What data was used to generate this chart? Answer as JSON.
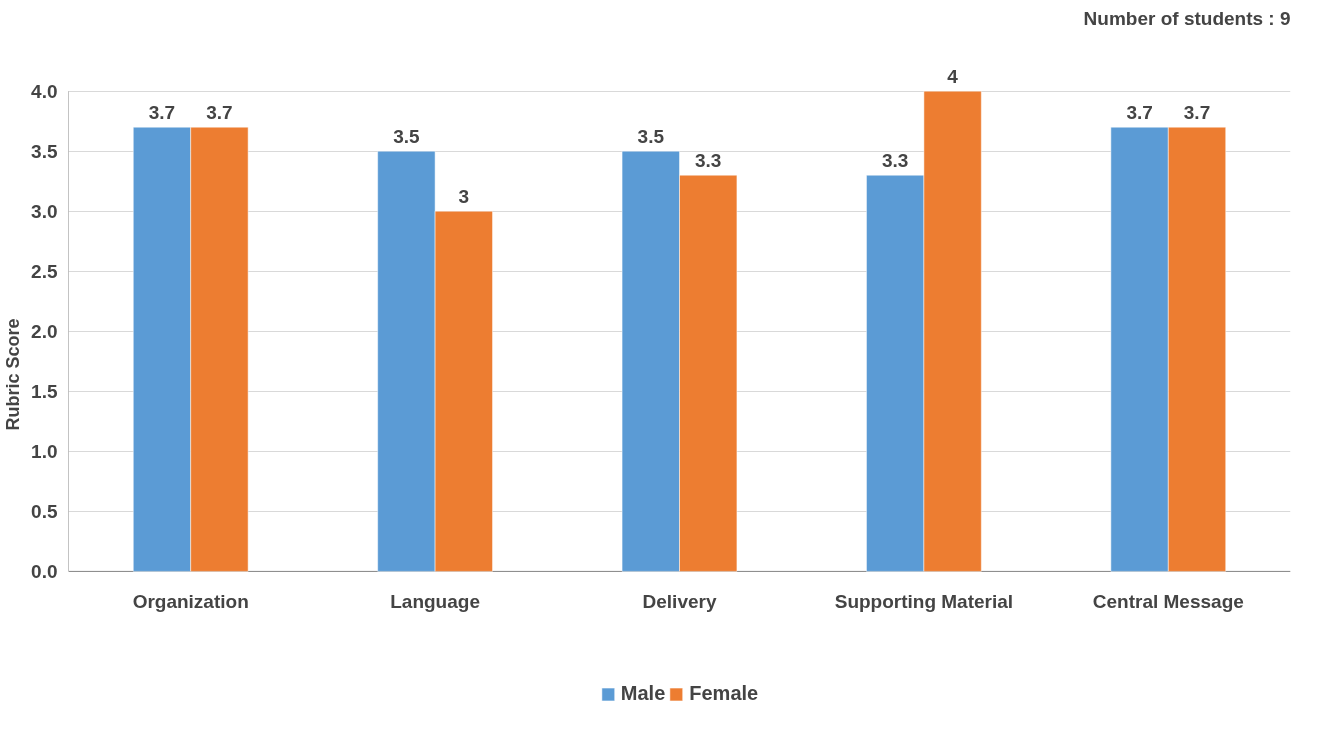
{
  "chart_data": {
    "type": "bar",
    "ylabel": "Rubric Score",
    "categories": [
      "Organization",
      "Language",
      "Delivery",
      "Supporting Material",
      "Central Message"
    ],
    "series": [
      {
        "name": "Male",
        "color": "#5b9bd5",
        "values": [
          3.7,
          3.5,
          3.5,
          3.3,
          3.7
        ],
        "value_labels": [
          "3.7",
          "3.5",
          "3.5",
          "3.3",
          "3.7"
        ]
      },
      {
        "name": "Female",
        "color": "#ed7d31",
        "values": [
          3.7,
          3.0,
          3.3,
          4.0,
          3.7
        ],
        "value_labels": [
          "3.7",
          "3",
          "3.3",
          "4",
          "3.7"
        ]
      }
    ],
    "ylim": [
      0,
      4
    ],
    "yticks": [
      {
        "value": 0,
        "label": "0.0"
      },
      {
        "value": 0.5,
        "label": "0.5"
      },
      {
        "value": 1,
        "label": "1.0"
      },
      {
        "value": 1.5,
        "label": "1.5"
      },
      {
        "value": 2,
        "label": "2.0"
      },
      {
        "value": 2.5,
        "label": "2.5"
      },
      {
        "value": 3,
        "label": "3.0"
      },
      {
        "value": 3.5,
        "label": "3.5"
      },
      {
        "value": 4,
        "label": "4.0"
      }
    ],
    "grid": "y",
    "legend": "bottom",
    "annotations": [
      "Number of students : 9"
    ]
  }
}
